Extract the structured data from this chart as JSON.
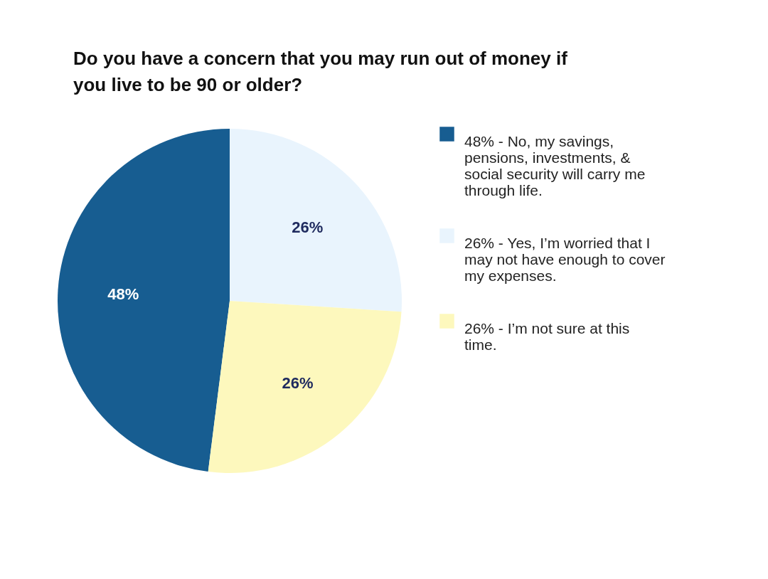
{
  "chart_data": {
    "type": "pie",
    "title": "Do you have a concern that you may run out of money if you live to be 90 or older?",
    "categories": [
      "48% - No, my savings, pensions, investments, & social security will carry me through life.",
      "26% - Yes, I’m worried that I may not have enough to cover my expenses.",
      "26% - I’m not sure at this time."
    ],
    "values": [
      48,
      26,
      26
    ],
    "colors": [
      "#175d91",
      "#e9f4fd",
      "#fdf8bd"
    ],
    "value_labels": [
      "48%",
      "26%",
      "26%"
    ],
    "legend": "right"
  }
}
